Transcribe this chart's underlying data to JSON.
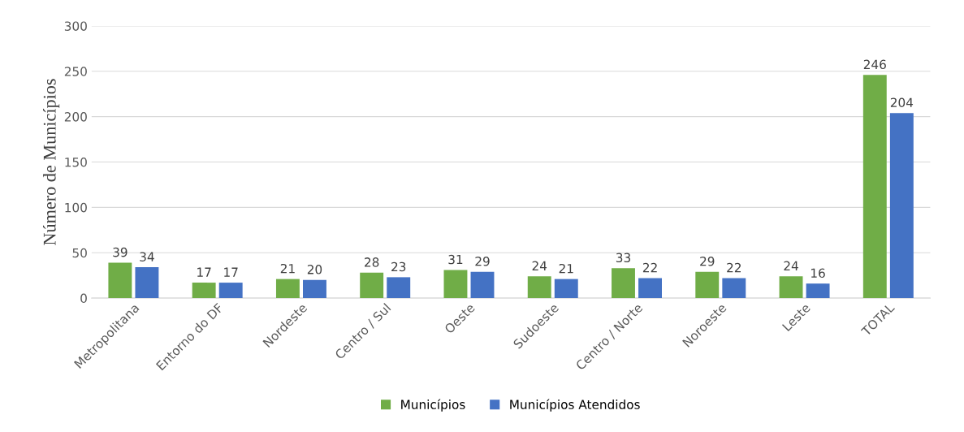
{
  "chart_data": {
    "type": "bar",
    "ylabel": "Número de Municípios",
    "categories": [
      "Metropolitana",
      "Entorno do DF",
      "Nordeste",
      "Centro / Sul",
      "Oeste",
      "Sudoeste",
      "Centro / Norte",
      "Noroeste",
      "Leste",
      "TOTAL"
    ],
    "series": [
      {
        "name": "Municípios",
        "color": "#70ad47",
        "values": [
          39,
          17,
          21,
          28,
          31,
          24,
          33,
          29,
          24,
          246
        ]
      },
      {
        "name": "Municípios Atendidos",
        "color": "#4472c4",
        "values": [
          34,
          17,
          20,
          23,
          29,
          21,
          22,
          22,
          16,
          204
        ]
      }
    ],
    "ylim": [
      0,
      300
    ],
    "yticks": [
      0,
      50,
      100,
      150,
      200,
      250,
      300
    ],
    "grid": "y",
    "legend": "bottom",
    "data_labels": true
  }
}
